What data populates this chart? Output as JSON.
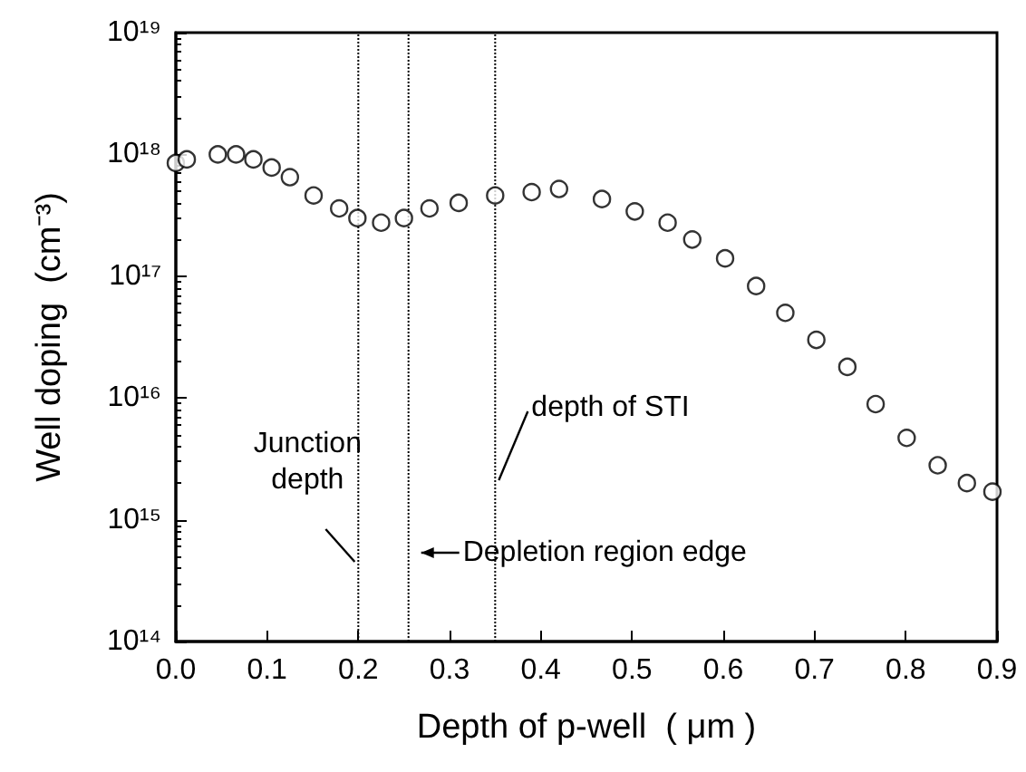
{
  "chart_data": {
    "type": "scatter",
    "xlabel": "Depth of p-well  ( μm )",
    "ylabel": "Well doping  (cm⁻³)",
    "log": "y",
    "marker": "circle",
    "grid": false,
    "x": [
      0,
      0.012,
      0.046,
      0.066,
      0.085,
      0.105,
      0.125,
      0.151,
      0.179,
      0.199,
      0.225,
      0.25,
      0.278,
      0.31,
      0.35,
      0.39,
      0.42,
      0.467,
      0.503,
      0.539,
      0.566,
      0.602,
      0.636,
      0.668,
      0.702,
      0.736,
      0.767,
      0.801,
      0.835,
      0.867,
      0.895
    ],
    "series": [
      {
        "color": "#000000",
        "values": [
          8.5e+17,
          9.1e+17,
          1e+18,
          1e+18,
          9.1e+17,
          7.8e+17,
          6.5e+17,
          4.6e+17,
          3.6e+17,
          3e+17,
          2.75e+17,
          3e+17,
          3.6e+17,
          4e+17,
          4.6e+17,
          4.9e+17,
          5.2e+17,
          4.3e+17,
          3.4e+17,
          2.75e+17,
          2e+17,
          1.4e+17,
          8.3e+16,
          5e+16,
          3e+16,
          1.8e+16,
          8900000000000000.0,
          4700000000000000.0,
          2800000000000000.0,
          2000000000000000.0,
          1700000000000000.0
        ]
      }
    ],
    "xlim": [
      0,
      0.9
    ],
    "xticks": [
      {
        "value": 0,
        "label": "0.0"
      },
      {
        "value": 0.1,
        "label": "0.1"
      },
      {
        "value": 0.2,
        "label": "0.2"
      },
      {
        "value": 0.3,
        "label": "0.3"
      },
      {
        "value": 0.4,
        "label": "0.4"
      },
      {
        "value": 0.5,
        "label": "0.5"
      },
      {
        "value": 0.6,
        "label": "0.6"
      },
      {
        "value": 0.7,
        "label": "0.7"
      },
      {
        "value": 0.8,
        "label": "0.8"
      },
      {
        "value": 0.9,
        "label": "0.9"
      }
    ],
    "ylim": [
      100000000000000.0,
      1e+19
    ],
    "yticks": [
      {
        "value": 100000000000000.0,
        "label": "10¹⁴"
      },
      {
        "value": 1000000000000000.0,
        "label": "10¹⁵"
      },
      {
        "value": 1e+16,
        "label": "10¹⁶"
      },
      {
        "value": 1e+17,
        "label": "10¹⁷"
      },
      {
        "value": 1e+18,
        "label": "10¹⁸"
      },
      {
        "value": 1e+19,
        "label": "10¹⁹"
      }
    ],
    "ref_lines": [
      {
        "axis": "x",
        "value": 0.2,
        "line_style": "dotted",
        "color": "#000000",
        "label": "Junction depth"
      },
      {
        "axis": "x",
        "value": 0.255,
        "line_style": "dotted",
        "color": "#000000",
        "label": "Depletion region edge"
      },
      {
        "axis": "x",
        "value": 0.35,
        "line_style": "dotted",
        "color": "#000000",
        "label": "depth of STI"
      }
    ]
  }
}
